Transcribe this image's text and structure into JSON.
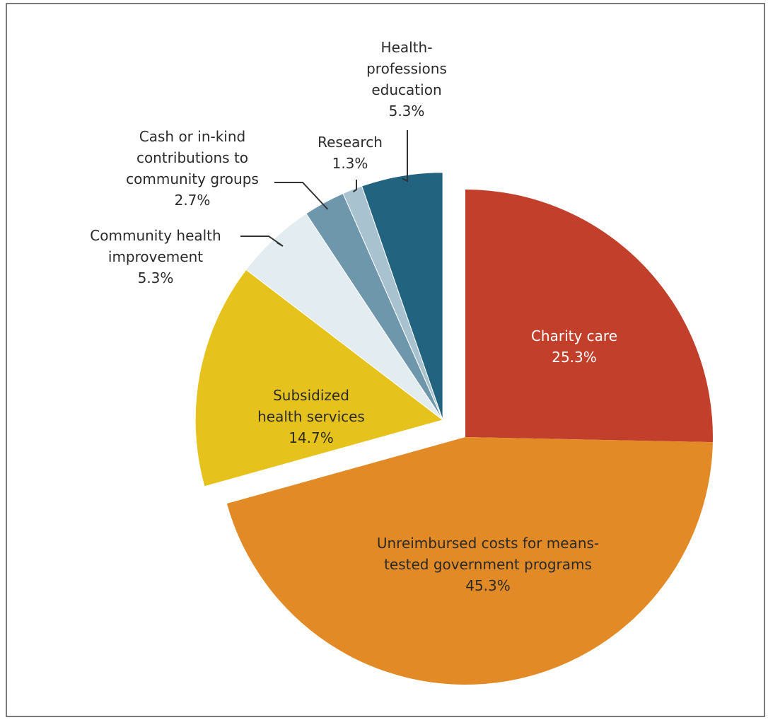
{
  "chart_data": {
    "type": "pie",
    "title": "",
    "unit": "%",
    "colors": {
      "charity": "#c2402b",
      "unreimbursed": "#e28a26",
      "subsidized": "#e6c21d",
      "community_health": "#e3ecf1",
      "cash": "#6f97ab",
      "research": "#a8c2cf",
      "education": "#22647f",
      "leader": "#333333",
      "label_dark": "#2b2b2b",
      "label_light": "#ffffff"
    },
    "slices": [
      {
        "key": "charity",
        "label_lines": [
          "Charity care"
        ],
        "value_text": "25.3%",
        "value": 25.3,
        "exploded": false
      },
      {
        "key": "unreimbursed",
        "label_lines": [
          "Unreimbursed costs for means-",
          "tested government programs"
        ],
        "value_text": "45.3%",
        "value": 45.3,
        "exploded": false
      },
      {
        "key": "subsidized",
        "label_lines": [
          "Subsidized",
          "health services"
        ],
        "value_text": "14.7%",
        "value": 14.7,
        "exploded": true
      },
      {
        "key": "community_health",
        "label_lines": [
          "Community health",
          "improvement"
        ],
        "value_text": "5.3%",
        "value": 5.3,
        "exploded": true
      },
      {
        "key": "cash",
        "label_lines": [
          "Cash or in-kind",
          "contributions to",
          "community groups"
        ],
        "value_text": "2.7%",
        "value": 2.7,
        "exploded": true
      },
      {
        "key": "research",
        "label_lines": [
          "Research"
        ],
        "value_text": "1.3%",
        "value": 1.3,
        "exploded": true
      },
      {
        "key": "education",
        "label_lines": [
          "Health-",
          "professions",
          "education"
        ],
        "value_text": "5.3%",
        "value": 5.3,
        "exploded": true
      }
    ]
  }
}
